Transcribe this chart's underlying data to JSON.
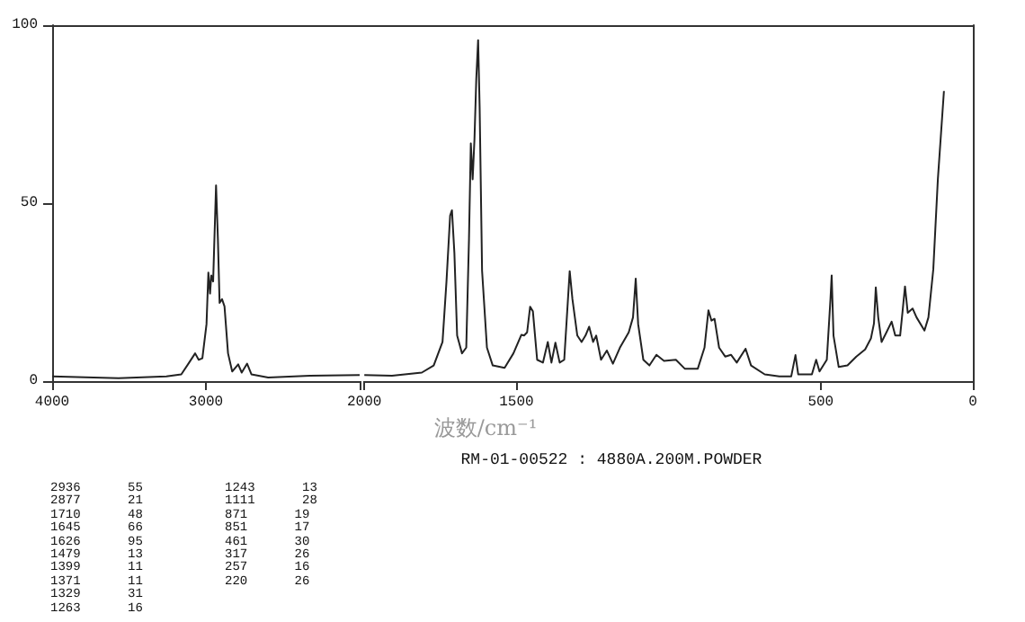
{
  "chart_data": [
    {
      "type": "line",
      "color": "#222222",
      "xlim": [
        4000,
        2000
      ],
      "xticks": [
        4000,
        3000,
        {
          "value": 2000,
          "label": null
        }
      ],
      "ylim": [
        0,
        100
      ],
      "yticks": [
        0,
        50,
        100
      ],
      "x": [
        4000,
        3568,
        3257,
        3160,
        3109,
        3070,
        3047,
        3023,
        2996,
        2984,
        2973,
        2965,
        2953,
        2934,
        2922,
        2911,
        2895,
        2879,
        2856,
        2829,
        2790,
        2767,
        2732,
        2704,
        2595,
        2323,
        2000
      ],
      "values": [
        1.3,
        0.8,
        1.3,
        1.9,
        5.2,
        7.8,
        6,
        6.4,
        16,
        30.5,
        24.6,
        29.7,
        28,
        55,
        40,
        22,
        23,
        21,
        7.8,
        2.7,
        4.7,
        2.4,
        4.9,
        1.9,
        1,
        1.5,
        1.7
      ]
    },
    {
      "type": "line",
      "color": "#222222",
      "xlim": [
        2000,
        0
      ],
      "xticks": [
        2000,
        1500,
        500,
        0
      ],
      "ylim": [
        0,
        100
      ],
      "tick_labels": "x",
      "xlabel": "波数/cm⁻¹",
      "annotations": [
        "RM-01-00522 : 4880A.200M.POWDER",
        "2936 55",
        "2877 21",
        "1710 48",
        "1645 66",
        "1626 95",
        "1479 13",
        "1399 11",
        "1371 11",
        "1329 31",
        "1263 16",
        "1243 13",
        "1111 28",
        "871 19",
        "851 17",
        "461 30",
        "317 26",
        "257 16",
        "220 26"
      ],
      "x": [
        2000,
        1909,
        1811,
        1772,
        1743,
        1730,
        1718,
        1712,
        1704,
        1695,
        1679,
        1665,
        1656,
        1650,
        1644,
        1638,
        1632,
        1626,
        1621,
        1613,
        1597,
        1578,
        1539,
        1510,
        1484,
        1475,
        1465,
        1455,
        1446,
        1432,
        1413,
        1397,
        1385,
        1372,
        1358,
        1343,
        1325,
        1316,
        1300,
        1286,
        1273,
        1261,
        1248,
        1238,
        1222,
        1203,
        1183,
        1160,
        1131,
        1117,
        1108,
        1100,
        1083,
        1063,
        1040,
        1015,
        976,
        947,
        904,
        882,
        869,
        859,
        849,
        834,
        814,
        795,
        776,
        747,
        729,
        684,
        636,
        597,
        583,
        574,
        529,
        515,
        504,
        480,
        468,
        464,
        458,
        441,
        412,
        383,
        354,
        335,
        325,
        319,
        311,
        300,
        284,
        267,
        255,
        239,
        231,
        223,
        214,
        198,
        185,
        159,
        146,
        130,
        115,
        95
      ],
      "values": [
        1.7,
        1.5,
        2.4,
        4.4,
        11,
        28,
        46.5,
        48,
        36,
        12.8,
        7.8,
        9.4,
        40,
        66.8,
        56.7,
        68,
        85,
        95.8,
        77,
        31,
        9.4,
        4.4,
        3.7,
        7.8,
        13,
        12.8,
        13.7,
        20.9,
        19.6,
        6,
        5.2,
        11,
        5.2,
        10.8,
        5.2,
        6,
        30.9,
        23,
        12.8,
        11,
        12.8,
        15.3,
        11,
        12.8,
        6,
        8.6,
        4.9,
        9.4,
        13.7,
        17.9,
        28.8,
        16,
        6,
        4.4,
        7.4,
        5.7,
        6,
        3.5,
        3.5,
        9.4,
        19.9,
        17,
        17.5,
        9.4,
        6.9,
        7.4,
        5.2,
        9.1,
        4.4,
        1.9,
        1.3,
        1.3,
        7.3,
        1.9,
        1.9,
        6,
        2.7,
        6,
        23,
        29.7,
        12.8,
        4,
        4.4,
        6.9,
        8.9,
        12,
        16.2,
        26.3,
        17.9,
        11,
        13.7,
        16.7,
        12.8,
        12.8,
        19.6,
        26.6,
        19.2,
        20.4,
        17.9,
        14.2,
        17.9,
        31.4,
        56.7,
        81.5
      ]
    }
  ]
}
